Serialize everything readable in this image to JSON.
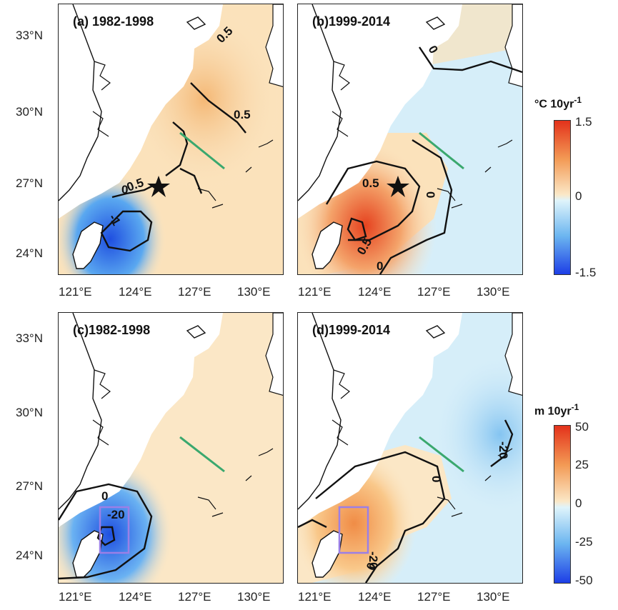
{
  "panels": [
    {
      "label": "(a) 1982-1998",
      "contours": [
        "0.5",
        "0.5",
        "0.5",
        "0",
        "-1"
      ]
    },
    {
      "label": "(b)1999-2014",
      "contours": [
        "0",
        "0.5",
        "0.5",
        "0",
        "0"
      ]
    },
    {
      "label": "(c)1982-1998",
      "contours": [
        "0",
        "-20"
      ]
    },
    {
      "label": "(d)1999-2014",
      "contours": [
        "0",
        "0",
        "-20",
        "-20"
      ]
    }
  ],
  "axes": {
    "lon_ticks": [
      "121°E",
      "124°E",
      "127°E",
      "130°E"
    ],
    "lat_ticks": [
      "33°N",
      "30°N",
      "27°N",
      "24°N"
    ]
  },
  "colorbars": [
    {
      "title": "°C 10yr",
      "title_sup": "-1",
      "ticks": [
        "1.5",
        "0",
        "-1.5"
      ]
    },
    {
      "title": "m 10yr",
      "title_sup": "-1",
      "ticks": [
        "50",
        "25",
        "0",
        "-25",
        "-50"
      ]
    }
  ],
  "colors": {
    "land": "#ffffff",
    "coast": "#111111",
    "section_line": "#3aa86e",
    "box": "#9b7fe6",
    "star": "#111111"
  }
}
